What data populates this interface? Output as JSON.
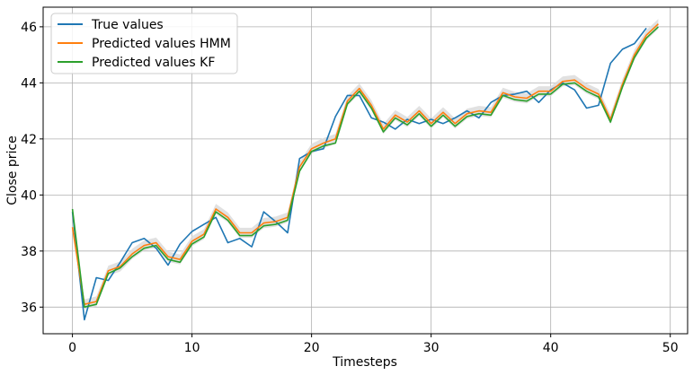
{
  "chart_data": {
    "type": "line",
    "xlabel": "Timesteps",
    "ylabel": "Close price",
    "xlim": [
      -2.45,
      51.45
    ],
    "ylim": [
      35.05,
      46.7
    ],
    "xticks": [
      0,
      10,
      20,
      30,
      40,
      50
    ],
    "yticks": [
      36,
      38,
      40,
      42,
      44,
      46
    ],
    "grid": true,
    "legend_position": "top-left",
    "x": [
      0,
      1,
      2,
      3,
      4,
      5,
      6,
      7,
      8,
      9,
      10,
      11,
      12,
      13,
      14,
      15,
      16,
      17,
      18,
      19,
      20,
      21,
      22,
      23,
      24,
      25,
      26,
      27,
      28,
      29,
      30,
      31,
      32,
      33,
      34,
      35,
      36,
      37,
      38,
      39,
      40,
      41,
      42,
      43,
      44,
      45,
      46,
      47,
      48,
      49
    ],
    "series": [
      {
        "name": "True values",
        "color": "#1f77b4",
        "values": [
          39.4,
          35.55,
          37.05,
          36.95,
          37.6,
          38.3,
          38.45,
          38.1,
          37.5,
          38.25,
          38.7,
          38.95,
          39.2,
          38.3,
          38.45,
          38.15,
          39.4,
          39.05,
          38.65,
          41.3,
          41.55,
          41.65,
          42.8,
          43.55,
          43.55,
          42.75,
          42.6,
          42.35,
          42.7,
          42.55,
          42.7,
          42.55,
          42.75,
          43.0,
          42.75,
          43.3,
          43.55,
          43.6,
          43.7,
          43.3,
          43.75,
          44.0,
          43.75,
          43.1,
          43.2,
          44.7,
          45.2,
          45.4,
          45.95,
          null
        ],
        "band": null
      },
      {
        "name": "Predicted values HMM",
        "color": "#ff7f0e",
        "values": [
          38.85,
          36.1,
          36.2,
          37.3,
          37.45,
          37.9,
          38.2,
          38.3,
          37.8,
          37.7,
          38.35,
          38.6,
          39.5,
          39.2,
          38.65,
          38.65,
          39.0,
          39.05,
          39.2,
          41.0,
          41.65,
          41.85,
          42.0,
          43.35,
          43.8,
          43.2,
          42.35,
          42.85,
          42.6,
          43.0,
          42.55,
          42.95,
          42.55,
          42.9,
          43.0,
          42.95,
          43.65,
          43.5,
          43.45,
          43.7,
          43.7,
          44.05,
          44.1,
          43.8,
          43.6,
          42.7,
          43.95,
          45.0,
          45.7,
          46.1
        ],
        "band": 0.18
      },
      {
        "name": "Predicted values KF",
        "color": "#2ca02c",
        "values": [
          39.5,
          36.0,
          36.1,
          37.2,
          37.4,
          37.8,
          38.1,
          38.2,
          37.7,
          37.6,
          38.25,
          38.5,
          39.4,
          39.1,
          38.55,
          38.55,
          38.9,
          38.95,
          39.1,
          40.85,
          41.55,
          41.75,
          41.85,
          43.25,
          43.7,
          43.1,
          42.25,
          42.75,
          42.5,
          42.9,
          42.45,
          42.85,
          42.45,
          42.8,
          42.9,
          42.85,
          43.55,
          43.4,
          43.35,
          43.6,
          43.6,
          43.95,
          44.0,
          43.7,
          43.5,
          42.6,
          43.85,
          44.9,
          45.6,
          46.0
        ],
        "band": null
      }
    ]
  }
}
